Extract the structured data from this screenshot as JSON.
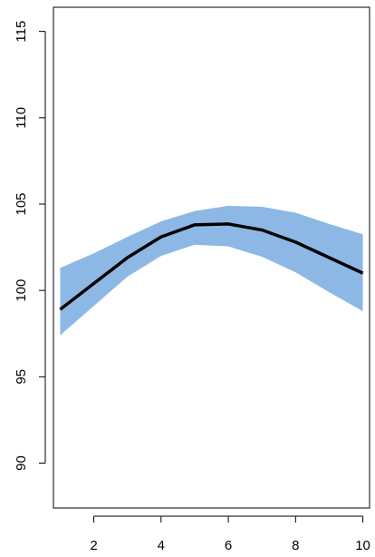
{
  "chart_data": {
    "type": "line",
    "title": "",
    "xlabel": "",
    "ylabel": "",
    "xlim": [
      0.8,
      10.2
    ],
    "ylim": [
      87.4,
      116.4
    ],
    "x_ticks": [
      2,
      4,
      6,
      8,
      10
    ],
    "y_ticks": [
      90,
      95,
      100,
      105,
      110,
      115
    ],
    "grid": false,
    "legend": "none",
    "band_color": "#8db8e6",
    "line_color": "#000000",
    "series": [
      {
        "x": [
          1,
          2,
          3,
          4,
          5,
          6,
          7,
          8,
          9,
          10
        ],
        "values": [
          98.9,
          100.4,
          101.9,
          103.1,
          103.8,
          103.85,
          103.5,
          102.8,
          101.9,
          101.0
        ],
        "lower": [
          97.4,
          99.1,
          100.8,
          102.0,
          102.65,
          102.55,
          101.95,
          101.05,
          99.9,
          98.8
        ],
        "upper": [
          101.3,
          102.15,
          103.1,
          104.0,
          104.6,
          104.9,
          104.85,
          104.5,
          103.85,
          103.25
        ]
      }
    ]
  }
}
